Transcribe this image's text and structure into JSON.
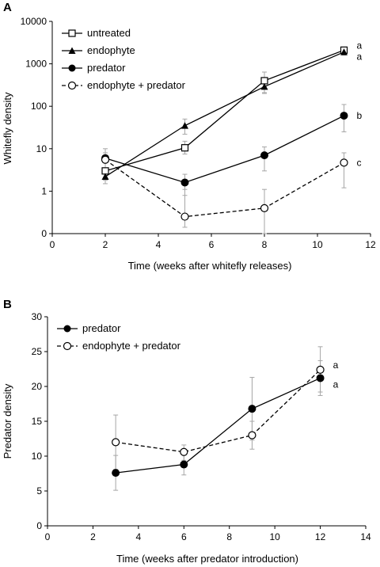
{
  "panels": [
    {
      "label": "A"
    },
    {
      "label": "B"
    }
  ],
  "chart_data": [
    {
      "type": "line",
      "panel": "A",
      "xlabel": "Time (weeks after whitefly releases)",
      "ylabel": "Whitefly density",
      "xlim": [
        0,
        12
      ],
      "ylim": [
        0,
        10000
      ],
      "yscale": "log-with-zero",
      "xticks": [
        0,
        2,
        4,
        6,
        8,
        10,
        12
      ],
      "yticks": [
        0,
        1,
        10,
        100,
        1000,
        10000
      ],
      "ytick_labels": [
        "0",
        "1",
        "10",
        "100",
        "1000",
        "10000"
      ],
      "grid": false,
      "legend": "top-left",
      "series": [
        {
          "name": "untreated",
          "x": [
            2,
            5,
            8,
            11
          ],
          "y": [
            3,
            10.5,
            400,
            2100
          ],
          "err_low": [
            1.8,
            7.5,
            210,
            1700
          ],
          "err_high": [
            6,
            15,
            640,
            2400
          ],
          "line": "solid",
          "marker": "open-square",
          "end_label": "a"
        },
        {
          "name": "endophyte",
          "x": [
            2,
            5,
            8,
            11
          ],
          "y": [
            2.2,
            35,
            290,
            1900
          ],
          "err_low": [
            1.5,
            22,
            200,
            1600
          ],
          "err_high": [
            3.5,
            50,
            400,
            2200
          ],
          "line": "solid",
          "marker": "filled-triangle",
          "end_label": "a"
        },
        {
          "name": "predator",
          "x": [
            2,
            5,
            8,
            11
          ],
          "y": [
            6,
            1.6,
            7,
            60
          ],
          "err_low": [
            3.5,
            0.9,
            3,
            25
          ],
          "err_high": [
            10,
            2.5,
            11,
            110
          ],
          "line": "solid",
          "marker": "filled-circle",
          "end_label": "b"
        },
        {
          "name": "endophyte + predator",
          "x": [
            2,
            5,
            8,
            11
          ],
          "y": [
            5.5,
            0.4,
            0.6,
            4.7
          ],
          "err_low": [
            3,
            0.15,
            0,
            1.2
          ],
          "err_high": [
            8,
            1.1,
            1.1,
            8
          ],
          "line": "dashed",
          "marker": "open-circle",
          "end_label": "c"
        }
      ]
    },
    {
      "type": "line",
      "panel": "B",
      "xlabel": "Time (weeks after predator introduction)",
      "ylabel": "Predator density",
      "xlim": [
        0,
        14
      ],
      "ylim": [
        0,
        30
      ],
      "xticks": [
        0,
        2,
        4,
        6,
        8,
        10,
        12,
        14
      ],
      "yticks": [
        0,
        5,
        10,
        15,
        20,
        25,
        30
      ],
      "grid": false,
      "legend": "top-left",
      "series": [
        {
          "name": "predator",
          "x": [
            3,
            6,
            9,
            12
          ],
          "y": [
            7.6,
            8.8,
            16.8,
            21.2
          ],
          "err_low": [
            5.1,
            7.3,
            12.3,
            18.7
          ],
          "err_high": [
            10.1,
            10.3,
            21.3,
            23.7
          ],
          "line": "solid",
          "marker": "filled-circle",
          "end_label": "a"
        },
        {
          "name": "endophyte + predator",
          "x": [
            3,
            6,
            9,
            12
          ],
          "y": [
            12,
            10.6,
            13,
            22.4
          ],
          "err_low": [
            8.1,
            9.4,
            11,
            19.2
          ],
          "err_high": [
            15.9,
            11.6,
            15,
            25.7
          ],
          "line": "dashed",
          "marker": "open-circle",
          "end_label": "a"
        }
      ]
    }
  ]
}
